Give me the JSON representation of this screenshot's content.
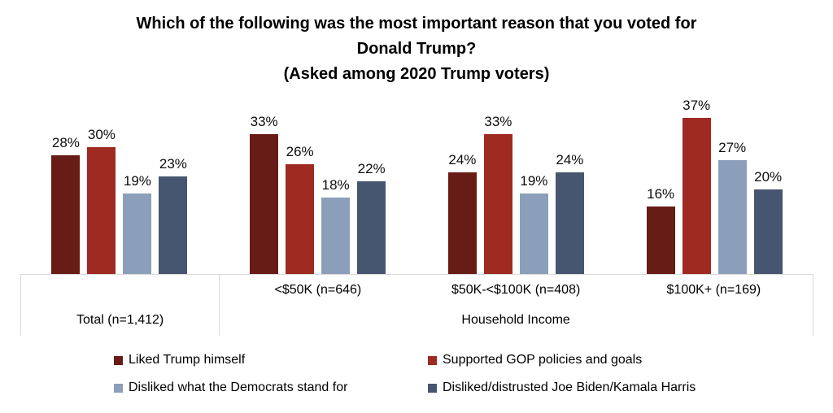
{
  "title": {
    "lines": [
      "Which of the following was the most important reason that you voted for",
      "Donald Trump?",
      "(Asked among 2020 Trump voters)"
    ]
  },
  "chart_data": {
    "type": "bar",
    "title": "Which of the following was the most important reason that you voted for Donald Trump? (Asked among 2020 Trump voters)",
    "unit": "%",
    "ylim": [
      0,
      40
    ],
    "grid": false,
    "legend_position": "bottom",
    "categories": [
      "Total (n=1,412)",
      "<$50K (n=646)",
      "$50K-<$100K (n=408)",
      "$100K+ (n=169)"
    ],
    "axis_group_label": "Household Income",
    "series": [
      {
        "name": "Liked Trump himself",
        "color": "#671C16",
        "values": [
          28,
          33,
          24,
          16
        ]
      },
      {
        "name": "Supported GOP policies and goals",
        "color": "#9E2A21",
        "values": [
          30,
          26,
          33,
          37
        ]
      },
      {
        "name": "Disliked what the Democrats stand for",
        "color": "#8C9FBA",
        "values": [
          19,
          18,
          19,
          27
        ]
      },
      {
        "name": "Disliked/distrusted Joe Biden/Kamala Harris",
        "color": "#465670",
        "values": [
          23,
          22,
          24,
          20
        ]
      }
    ]
  }
}
